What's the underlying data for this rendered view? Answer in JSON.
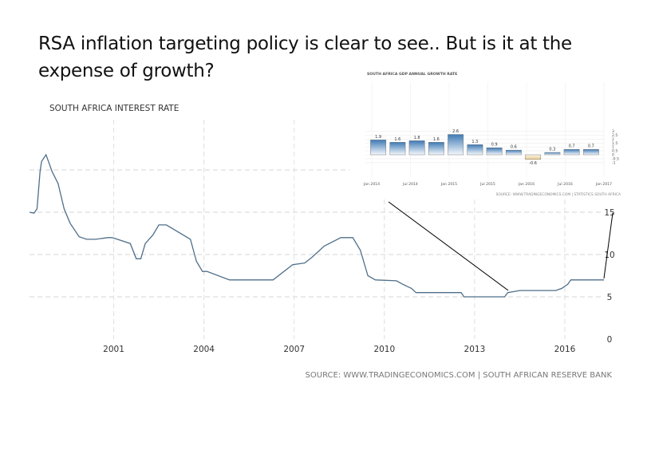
{
  "slide": {
    "title": "RSA inflation targeting policy is clear to see.. But is it at the expense of growth?"
  },
  "chart_data": [
    {
      "type": "line",
      "title": "SOUTH AFRICA INTEREST RATE",
      "source": "SOURCE: WWW.TRADINGECONOMICS.COM | SOUTH AFRICAN RESERVE BANK",
      "xlabel": "",
      "ylabel": "",
      "x_ticks": [
        "2001",
        "2004",
        "2007",
        "2010",
        "2013",
        "2016"
      ],
      "y_ticks": [
        "0",
        "5",
        "10",
        "15"
      ],
      "ylim": [
        0,
        20
      ],
      "xlim": [
        1998.2,
        2017.3
      ],
      "grid": true,
      "color": "#4f6f8a",
      "series": [
        {
          "name": "Interest Rate",
          "x": [
            1998.2,
            1998.35,
            1998.45,
            1998.55,
            1998.6,
            1998.75,
            1998.95,
            1999.15,
            1999.35,
            1999.55,
            1999.85,
            2000.1,
            2000.4,
            2000.8,
            2000.95,
            2001.55,
            2001.75,
            2001.9,
            2002.05,
            2002.3,
            2002.5,
            2002.75,
            2003.55,
            2003.75,
            2003.95,
            2004.1,
            2004.85,
            2005.3,
            2006.3,
            2006.95,
            2007.35,
            2007.6,
            2008.0,
            2008.55,
            2008.95,
            2009.2,
            2009.45,
            2009.7,
            2010.4,
            2010.6,
            2010.9,
            2011.05,
            2012.55,
            2012.65,
            2014.0,
            2014.1,
            2014.5,
            2015.7,
            2015.9,
            2016.1,
            2016.2,
            2017.3
          ],
          "values": [
            15.0,
            14.9,
            15.4,
            19.8,
            21.0,
            21.8,
            19.8,
            18.4,
            15.4,
            13.7,
            12.1,
            11.8,
            11.8,
            12.0,
            12.0,
            11.3,
            9.5,
            9.5,
            11.3,
            12.3,
            13.5,
            13.5,
            11.8,
            9.2,
            8.0,
            8.0,
            7.0,
            7.0,
            7.0,
            8.8,
            9.0,
            9.7,
            11.0,
            12.0,
            12.0,
            10.5,
            7.5,
            7.0,
            6.9,
            6.5,
            6.0,
            5.5,
            5.5,
            5.0,
            5.0,
            5.5,
            5.75,
            5.75,
            6.0,
            6.5,
            7.0,
            7.0
          ]
        }
      ]
    },
    {
      "type": "bar",
      "title": "SOUTH AFRICA GDP ANNUAL GROWTH RATE",
      "source": "SOURCE: WWW.TRADINGECONOMICS.COM | STATISTICS SOUTH AFRICA",
      "categories": [
        "Jan 2014",
        "Apr 2014",
        "Jul 2014",
        "Oct 2014",
        "Jan 2015",
        "Apr 2015",
        "Jul 2015",
        "Oct 2015",
        "Jan 2016",
        "Apr 2016",
        "Jul 2016",
        "Oct 2016"
      ],
      "values": [
        1.9,
        1.6,
        1.8,
        1.6,
        2.6,
        1.3,
        0.9,
        0.6,
        -0.6,
        0.3,
        0.7,
        0.7
      ],
      "value_labels": [
        "1.9",
        "1.6",
        "1.8",
        "1.6",
        "2.6",
        "1.3",
        "0.9",
        "0.6",
        "-0.6",
        "0.3",
        "0.7",
        "0.7"
      ],
      "x_ticks": [
        "Jan 2014",
        "Jul 2014",
        "Jan 2015",
        "Jul 2015",
        "Jan 2016",
        "Jul 2016",
        "Jan 2017"
      ],
      "y_ticks": [
        "3",
        "2.5",
        "2",
        "1.5",
        "1",
        "0.5",
        "0",
        "-0.5",
        "-1"
      ],
      "ylim": [
        -1,
        3
      ],
      "grid": true,
      "positive_color": "#3f7ab5",
      "negative_color": "#e8c98a"
    }
  ],
  "annotations": {
    "arrow_lines": 2,
    "color": "#000000"
  }
}
